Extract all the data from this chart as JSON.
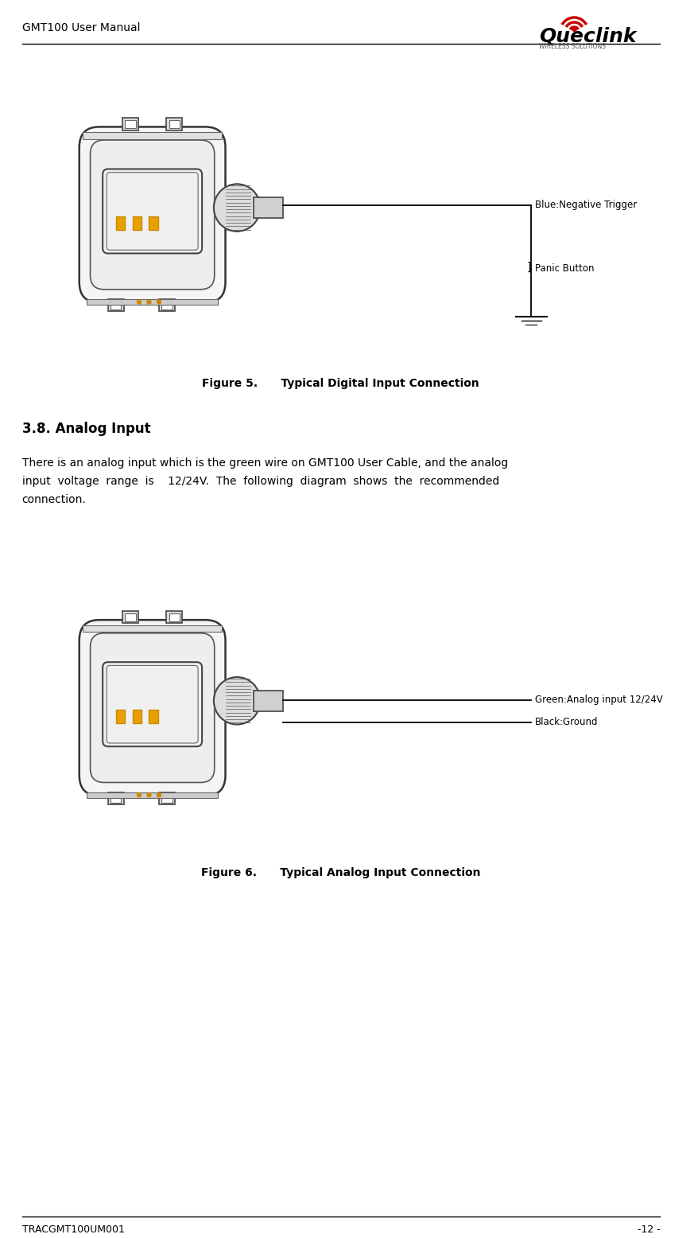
{
  "page_width": 8.73,
  "page_height": 15.56,
  "bg_color": "#ffffff",
  "header_left": "GMT100 User Manual",
  "header_font_size": 10,
  "footer_left": "TRACGMT100UM001",
  "footer_right": "-12 -",
  "footer_font_size": 9,
  "fig5_caption": "Figure 5.      Typical Digital Input Connection",
  "fig6_caption": "Figure 6.      Typical Analog Input Connection",
  "section_title": "3.8. Analog Input",
  "body_text_line1": "There is an analog input which is the green wire on GMT100 User Cable, and the analog",
  "body_text_line2": "input  voltage  range  is    12/24V.  The  following  diagram  shows  the  recommended",
  "body_text_line3": "connection.",
  "fig5_label1": "Blue:Negative Trigger",
  "fig5_label2": "Panic Button",
  "fig6_label1": "Green:Analog input 12/24V",
  "fig6_label2": "Black:Ground",
  "device_color": "#1a1a1a",
  "device_outline": "#333333",
  "led_color": "#e8a000",
  "connector_color": "#222222",
  "line_color": "#000000",
  "text_color": "#000000",
  "gray_light": "#888888",
  "gray_mid": "#555555"
}
